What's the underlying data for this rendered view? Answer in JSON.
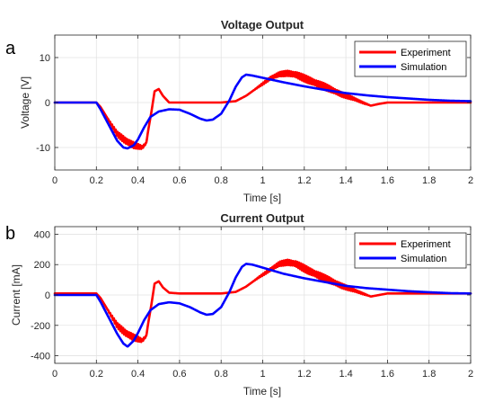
{
  "chart_data": [
    {
      "type": "line",
      "panel_label": "a",
      "title": "Voltage Output",
      "xlabel": "Time [s]",
      "ylabel": "Voltage [V]",
      "xlim": [
        0,
        2
      ],
      "ylim": [
        -15,
        15
      ],
      "xticks": [
        0,
        0.2,
        0.4,
        0.6,
        0.8,
        1,
        1.2,
        1.4,
        1.6,
        1.8,
        2
      ],
      "xtick_labels": [
        "0",
        "0.2",
        "0.4",
        "0.6",
        "0.8",
        "1",
        "1.2",
        "1.4",
        "1.6",
        "1.8",
        "2"
      ],
      "yticks": [
        -10,
        0,
        10
      ],
      "ytick_labels": [
        "-10",
        "0",
        "10"
      ],
      "grid": true,
      "legend": "top-right",
      "series": [
        {
          "name": "Experiment",
          "color": "#ff0000",
          "oscillating": [
            [
              0.25,
              0.45
            ],
            [
              0.95,
              1.52
            ]
          ],
          "x": [
            0,
            0.2,
            0.22,
            0.26,
            0.3,
            0.34,
            0.38,
            0.42,
            0.44,
            0.45,
            0.465,
            0.48,
            0.5,
            0.52,
            0.55,
            0.6,
            0.8,
            0.87,
            0.92,
            0.98,
            1.04,
            1.08,
            1.12,
            1.16,
            1.22,
            1.3,
            1.38,
            1.44,
            1.48,
            1.52,
            1.56,
            1.6,
            2
          ],
          "y": [
            0,
            0,
            -1,
            -4,
            -7,
            -8.5,
            -9.5,
            -10,
            -9,
            -6,
            -2,
            2.5,
            3,
            1.5,
            0,
            0,
            0,
            0.3,
            1.5,
            3.5,
            5.5,
            6.3,
            6.5,
            6.2,
            5,
            3.5,
            1.8,
            0.8,
            0,
            -0.7,
            -0.3,
            0,
            0
          ]
        },
        {
          "name": "Simulation",
          "color": "#0000ff",
          "x": [
            0,
            0.2,
            0.22,
            0.26,
            0.3,
            0.33,
            0.35,
            0.38,
            0.4,
            0.43,
            0.46,
            0.5,
            0.55,
            0.6,
            0.65,
            0.7,
            0.73,
            0.76,
            0.8,
            0.84,
            0.87,
            0.9,
            0.92,
            0.95,
            1,
            1.1,
            1.2,
            1.3,
            1.4,
            1.5,
            1.6,
            1.7,
            1.8,
            1.9,
            2
          ],
          "y": [
            0,
            0,
            -1.5,
            -5,
            -8.5,
            -10,
            -10.2,
            -9.5,
            -8.2,
            -5.5,
            -3.2,
            -2,
            -1.5,
            -1.6,
            -2.5,
            -3.6,
            -4,
            -3.8,
            -2.5,
            0.5,
            3.5,
            5.6,
            6.2,
            6,
            5.5,
            4.5,
            3.6,
            2.8,
            2.1,
            1.6,
            1.2,
            0.9,
            0.6,
            0.4,
            0.3
          ]
        }
      ]
    },
    {
      "type": "line",
      "panel_label": "b",
      "title": "Current Output",
      "xlabel": "Time [s]",
      "ylabel": "Current [mA]",
      "xlim": [
        0,
        2
      ],
      "ylim": [
        -450,
        450
      ],
      "xticks": [
        0,
        0.2,
        0.4,
        0.6,
        0.8,
        1,
        1.2,
        1.4,
        1.6,
        1.8,
        2
      ],
      "xtick_labels": [
        "0",
        "0.2",
        "0.4",
        "0.6",
        "0.8",
        "1",
        "1.2",
        "1.4",
        "1.6",
        "1.8",
        "2"
      ],
      "yticks": [
        -400,
        -200,
        0,
        200,
        400
      ],
      "ytick_labels": [
        "-400",
        "-200",
        "0",
        "200",
        "400"
      ],
      "grid": true,
      "legend": "top-right",
      "series": [
        {
          "name": "Experiment",
          "color": "#ff0000",
          "oscillating": [
            [
              0.25,
              0.45
            ],
            [
              0.95,
              1.52
            ]
          ],
          "x": [
            0,
            0.2,
            0.22,
            0.26,
            0.3,
            0.34,
            0.38,
            0.42,
            0.44,
            0.45,
            0.465,
            0.48,
            0.5,
            0.52,
            0.55,
            0.6,
            0.8,
            0.87,
            0.92,
            0.98,
            1.04,
            1.08,
            1.12,
            1.16,
            1.22,
            1.3,
            1.38,
            1.44,
            1.48,
            1.52,
            1.56,
            1.6,
            2
          ],
          "y": [
            10,
            10,
            -20,
            -110,
            -200,
            -250,
            -280,
            -300,
            -270,
            -180,
            -60,
            75,
            90,
            50,
            15,
            10,
            10,
            20,
            55,
            115,
            170,
            205,
            215,
            205,
            160,
            110,
            60,
            30,
            10,
            -10,
            0,
            10,
            10
          ]
        },
        {
          "name": "Simulation",
          "color": "#0000ff",
          "x": [
            0,
            0.2,
            0.22,
            0.26,
            0.3,
            0.33,
            0.35,
            0.38,
            0.4,
            0.43,
            0.46,
            0.5,
            0.55,
            0.6,
            0.65,
            0.7,
            0.73,
            0.76,
            0.8,
            0.84,
            0.87,
            0.9,
            0.92,
            0.95,
            1,
            1.1,
            1.2,
            1.3,
            1.4,
            1.5,
            1.6,
            1.7,
            1.8,
            1.9,
            2
          ],
          "y": [
            0,
            0,
            -45,
            -150,
            -255,
            -320,
            -340,
            -300,
            -250,
            -165,
            -100,
            -60,
            -48,
            -55,
            -80,
            -115,
            -130,
            -125,
            -80,
            20,
            115,
            185,
            205,
            200,
            180,
            140,
            110,
            85,
            60,
            45,
            35,
            25,
            18,
            12,
            10
          ]
        }
      ]
    }
  ]
}
